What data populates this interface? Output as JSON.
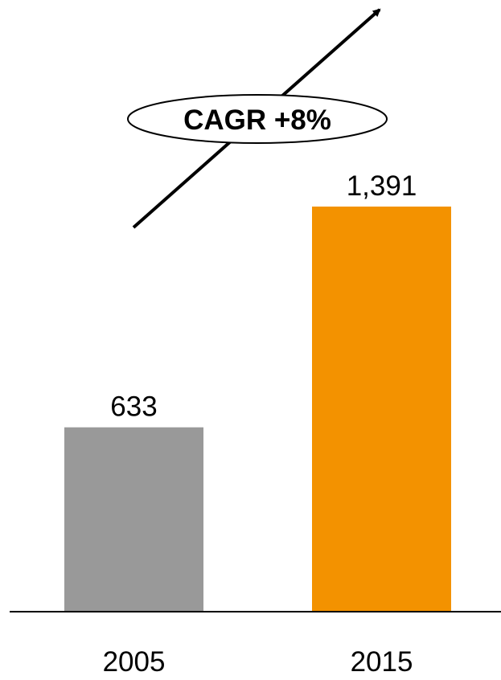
{
  "chart_data": {
    "type": "bar",
    "categories": [
      "2005",
      "2015"
    ],
    "values": [
      633,
      1391
    ],
    "value_labels": [
      "633",
      "1,391"
    ],
    "colors": [
      "#999999",
      "#F39200"
    ],
    "title": "",
    "xlabel": "",
    "ylabel": "",
    "ylim": [
      0,
      1400
    ],
    "grid": false,
    "legend": "none",
    "annotation": {
      "text": "CAGR +8%",
      "shape": "ellipse with upward arrow"
    }
  }
}
